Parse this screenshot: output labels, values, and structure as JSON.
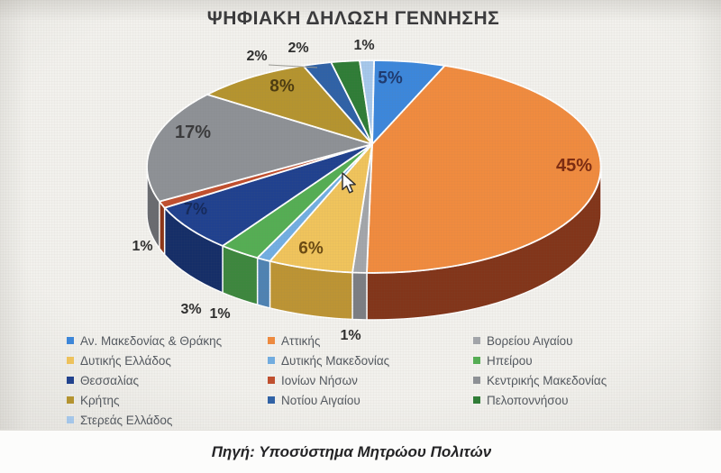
{
  "title": "ΨΗΦΙΑΚΗ ΔΗΛΩΣΗ ΓΕΝΝΗΣΗΣ",
  "caption": "Πηγή: Υποσύστημα Μητρώου Πολιτών",
  "chart_data": {
    "type": "pie",
    "style": "3d",
    "title": "ΨΗΦΙΑΚΗ ΔΗΛΩΣΗ ΓΕΝΝΗΣΗΣ",
    "unit": "percent",
    "legend_position": "bottom",
    "series": [
      {
        "label": "Αν. Μακεδονίας & Θράκης",
        "value": 5,
        "display": "5%",
        "color": "#3c87db",
        "side_color": "#2b62a6"
      },
      {
        "label": "Αττικής",
        "value": 45,
        "display": "45%",
        "color": "#f08b3f",
        "side_color": "#82351a"
      },
      {
        "label": "Βορείου Αιγαίου",
        "value": 1,
        "display": "1%",
        "color": "#a3a6ab",
        "side_color": "#7c7e83"
      },
      {
        "label": "Δυτικής Ελλάδος",
        "value": 6,
        "display": "6%",
        "color": "#f0c45c",
        "side_color": "#bd9434"
      },
      {
        "label": "Δυτικής Μακεδονίας",
        "value": 1,
        "display": "1%",
        "color": "#72aee2",
        "side_color": "#4f83b3"
      },
      {
        "label": "Ηπείρου",
        "value": 3,
        "display": "3%",
        "color": "#55ae54",
        "side_color": "#3d873e"
      },
      {
        "label": "Θεσσαλίας",
        "value": 7,
        "display": "7%",
        "color": "#20418f",
        "side_color": "#152e68"
      },
      {
        "label": "Ιονίων Νήσων",
        "value": 1,
        "display": "1%",
        "color": "#c14f2e",
        "side_color": "#8c3517"
      },
      {
        "label": "Κεντρικής Μακεδονίας",
        "value": 17,
        "display": "17%",
        "color": "#8e9196",
        "side_color": "#696b70"
      },
      {
        "label": "Κρήτης",
        "value": 8,
        "display": "8%",
        "color": "#b5942f",
        "side_color": "#8f7423"
      },
      {
        "label": "Νοτίου Αιγαίου",
        "value": 2,
        "display": "2%",
        "color": "#2f62a7",
        "side_color": "#224a80"
      },
      {
        "label": "Πελοποννήσου",
        "value": 2,
        "display": "2%",
        "color": "#2f7d37",
        "side_color": "#225c28"
      },
      {
        "label": "Στερεάς Ελλάδος",
        "value": 1,
        "display": "1%",
        "color": "#a6c8ec",
        "side_color": "#7fa3c8"
      }
    ]
  }
}
